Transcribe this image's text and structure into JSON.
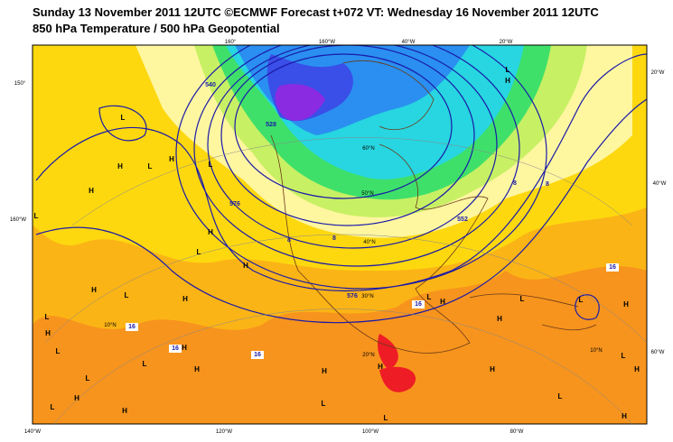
{
  "header": {
    "title_line1": "Sunday 13 November 2011 12UTC ©ECMWF Forecast t+072 VT: Wednesday 16 November 2011 12UTC",
    "title_line2": "850 hPa Temperature / 500 hPa Geopotential"
  },
  "grid_labels": {
    "top": [
      "160°",
      "160°W",
      "40°W",
      "20°W"
    ],
    "left": [
      "150°",
      "160°W"
    ],
    "right": [
      "20°W",
      "40°W",
      "60°W"
    ],
    "bottom": [
      "140°W",
      "120°W",
      "100°W",
      "80°W"
    ],
    "latitude": [
      "60°N",
      "50°N",
      "40°N",
      "30°N",
      "20°N",
      "10°N",
      "10°N"
    ]
  },
  "pressure_labels": [
    "L",
    "H",
    "L",
    "H",
    "L",
    "H",
    "L",
    "H",
    "L",
    "H",
    "H",
    "L",
    "H",
    "L",
    "H",
    "L",
    "H",
    "L",
    "H",
    "L",
    "H",
    "L",
    "H",
    "L",
    "H",
    "L",
    "H",
    "L",
    "H",
    "L",
    "L",
    "H",
    "H",
    "H",
    "L",
    "L",
    "H",
    "H",
    "L",
    "H"
  ],
  "contour_labels": [
    "16",
    "16",
    "16",
    "16",
    "16",
    "8",
    "8",
    "8",
    "8",
    "576",
    "552",
    "528",
    "540",
    "576"
  ]
}
